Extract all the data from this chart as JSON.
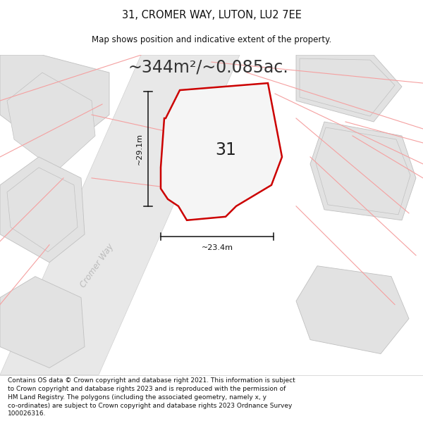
{
  "title": "31, CROMER WAY, LUTON, LU2 7EE",
  "subtitle": "Map shows position and indicative extent of the property.",
  "area_text": "~344m²/~0.085ac.",
  "label_31": "31",
  "dim_height": "~29.1m",
  "dim_width": "~23.4m",
  "street_label": "Cromer Way",
  "footer": "Contains OS data © Crown copyright and database right 2021. This information is subject\nto Crown copyright and database rights 2023 and is reproduced with the permission of\nHM Land Registry. The polygons (including the associated geometry, namely x, y\nco-ordinates) are subject to Crown copyright and database rights 2023 Ordnance Survey\n100026316.",
  "bg_color": "#ffffff",
  "map_bg": "#f0f0f0",
  "plot_fill": "#f5f5f5",
  "plot_edge": "#cc0000",
  "neighbor_fill": "#e2e2e2",
  "neighbor_edge": "#c0c0c0",
  "road_fill": "#e8e8e8",
  "pink_line_color": "#f5a0a0",
  "dim_line_color": "#111111",
  "title_fontsize": 10.5,
  "subtitle_fontsize": 8.5,
  "area_fontsize": 17,
  "label_fontsize": 17,
  "dim_fontsize": 8,
  "street_fontsize": 8.5,
  "footer_fontsize": 6.5
}
